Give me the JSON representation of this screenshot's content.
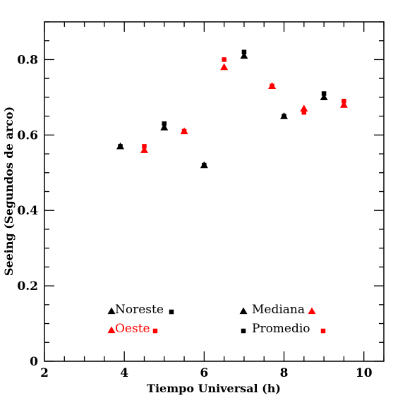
{
  "chart_data": {
    "type": "scatter",
    "xlabel": "Tiempo Universal (h)",
    "ylabel": "Seeing (Segundos de arco)",
    "xlim": [
      2,
      10.5
    ],
    "ylim": [
      0,
      0.9
    ],
    "x_ticks": [
      2,
      4,
      6,
      8,
      10
    ],
    "y_ticks": [
      0,
      0.2,
      0.4,
      0.6,
      0.8
    ],
    "x_tick_labels": [
      "2",
      "4",
      "6",
      "8",
      "10"
    ],
    "y_tick_labels": [
      "0",
      "0.2",
      "0.4",
      "0.6",
      "0.8"
    ],
    "series": [
      {
        "name": "Noreste",
        "color": "#000000",
        "marker": "triangle",
        "stat": "Mediana",
        "points": [
          [
            3.9,
            0.57
          ],
          [
            5.0,
            0.62
          ],
          [
            6.0,
            0.52
          ],
          [
            7.0,
            0.81
          ],
          [
            8.0,
            0.65
          ],
          [
            9.0,
            0.7
          ]
        ]
      },
      {
        "name": "Noreste",
        "color": "#000000",
        "marker": "square",
        "stat": "Promedio",
        "points": [
          [
            3.9,
            0.57
          ],
          [
            5.0,
            0.63
          ],
          [
            6.0,
            0.52
          ],
          [
            7.0,
            0.82
          ],
          [
            8.0,
            0.65
          ],
          [
            9.0,
            0.71
          ]
        ]
      },
      {
        "name": "Oeste",
        "color": "#ff0000",
        "marker": "triangle",
        "stat": "Mediana",
        "points": [
          [
            4.5,
            0.56
          ],
          [
            5.5,
            0.61
          ],
          [
            6.5,
            0.78
          ],
          [
            7.7,
            0.73
          ],
          [
            8.5,
            0.67
          ],
          [
            9.5,
            0.68
          ]
        ]
      },
      {
        "name": "Oeste",
        "color": "#ff0000",
        "marker": "square",
        "stat": "Promedio",
        "points": [
          [
            4.5,
            0.57
          ],
          [
            5.5,
            0.61
          ],
          [
            6.5,
            0.8
          ],
          [
            7.7,
            0.73
          ],
          [
            8.5,
            0.66
          ],
          [
            9.5,
            0.69
          ]
        ]
      }
    ],
    "legend": {
      "groups": [
        {
          "label": "Noreste",
          "color": "#000000"
        },
        {
          "label": "Oeste",
          "color": "#ff0000"
        }
      ],
      "stats": [
        {
          "label": "Mediana",
          "marker": "triangle"
        },
        {
          "label": "Promedio",
          "marker": "square"
        }
      ],
      "placement": "bottom-left and bottom-center"
    },
    "grid": false
  }
}
